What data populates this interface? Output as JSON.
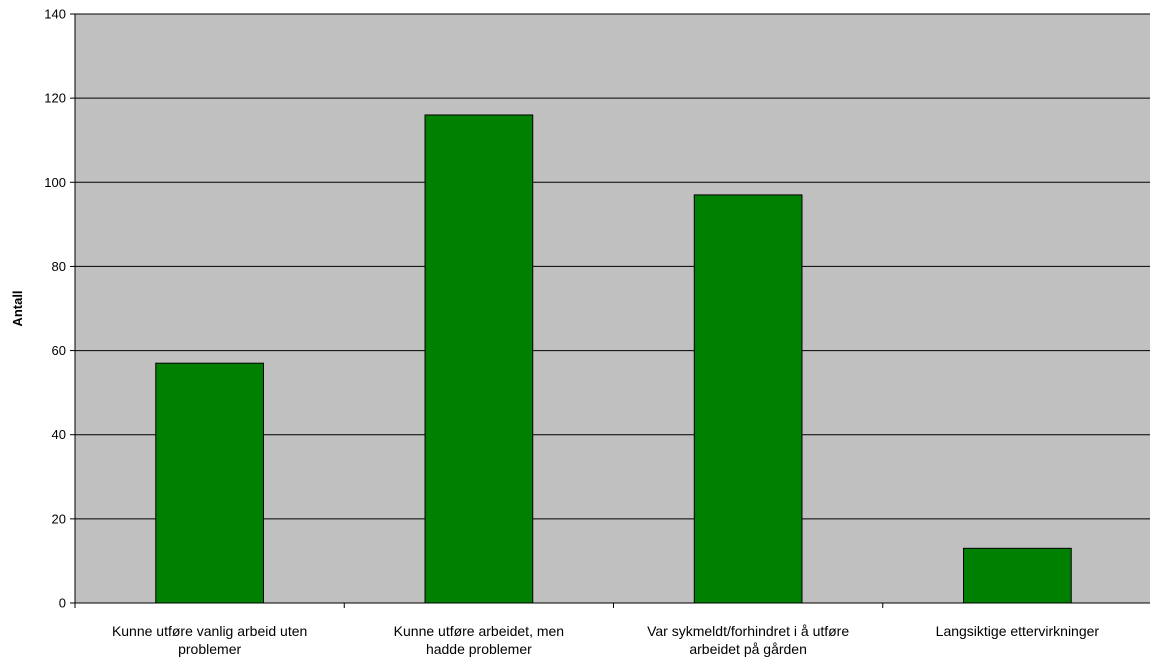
{
  "chart_data": {
    "type": "bar",
    "title": "",
    "xlabel": "",
    "ylabel": "Antall",
    "ylim": [
      0,
      140
    ],
    "yticks": [
      0,
      20,
      40,
      60,
      80,
      100,
      120,
      140
    ],
    "grid": true,
    "legend": "none",
    "categories": [
      [
        "Kunne utføre vanlig arbeid uten",
        "problemer"
      ],
      [
        "Kunne utføre arbeidet, men",
        "hadde problemer"
      ],
      [
        "Var sykmeldt/forhindret i å utføre",
        "arbeidet på gården"
      ],
      [
        "Langsiktige ettervirkninger"
      ]
    ],
    "values": [
      57,
      116,
      97,
      13
    ],
    "colors": {
      "bar": "#008000",
      "plot_background": "#c0c0c0",
      "gridline": "#000000"
    }
  }
}
